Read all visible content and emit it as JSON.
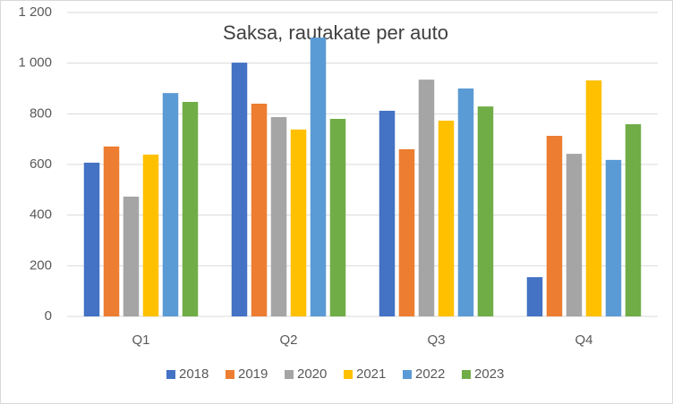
{
  "chart_data": {
    "type": "bar",
    "title": "Saksa, rautakate per auto",
    "categories": [
      "Q1",
      "Q2",
      "Q3",
      "Q4"
    ],
    "series": [
      {
        "name": "2018",
        "color": "#4472c4",
        "values": [
          607,
          1002,
          812,
          155
        ]
      },
      {
        "name": "2019",
        "color": "#ed7d31",
        "values": [
          671,
          840,
          660,
          713
        ]
      },
      {
        "name": "2020",
        "color": "#a5a5a5",
        "values": [
          473,
          787,
          935,
          642
        ]
      },
      {
        "name": "2021",
        "color": "#ffc000",
        "values": [
          639,
          738,
          773,
          932
        ]
      },
      {
        "name": "2022",
        "color": "#5b9bd5",
        "values": [
          882,
          1101,
          900,
          618
        ]
      },
      {
        "name": "2023",
        "color": "#70ad47",
        "values": [
          847,
          780,
          829,
          759
        ]
      }
    ],
    "ylim": [
      0,
      1200
    ],
    "yticks": [
      0,
      200,
      400,
      600,
      800,
      {
        "value": 1000,
        "label": "1 000"
      },
      {
        "value": 1200,
        "label": "1 200"
      }
    ],
    "grid": true,
    "legend": "bottom"
  }
}
